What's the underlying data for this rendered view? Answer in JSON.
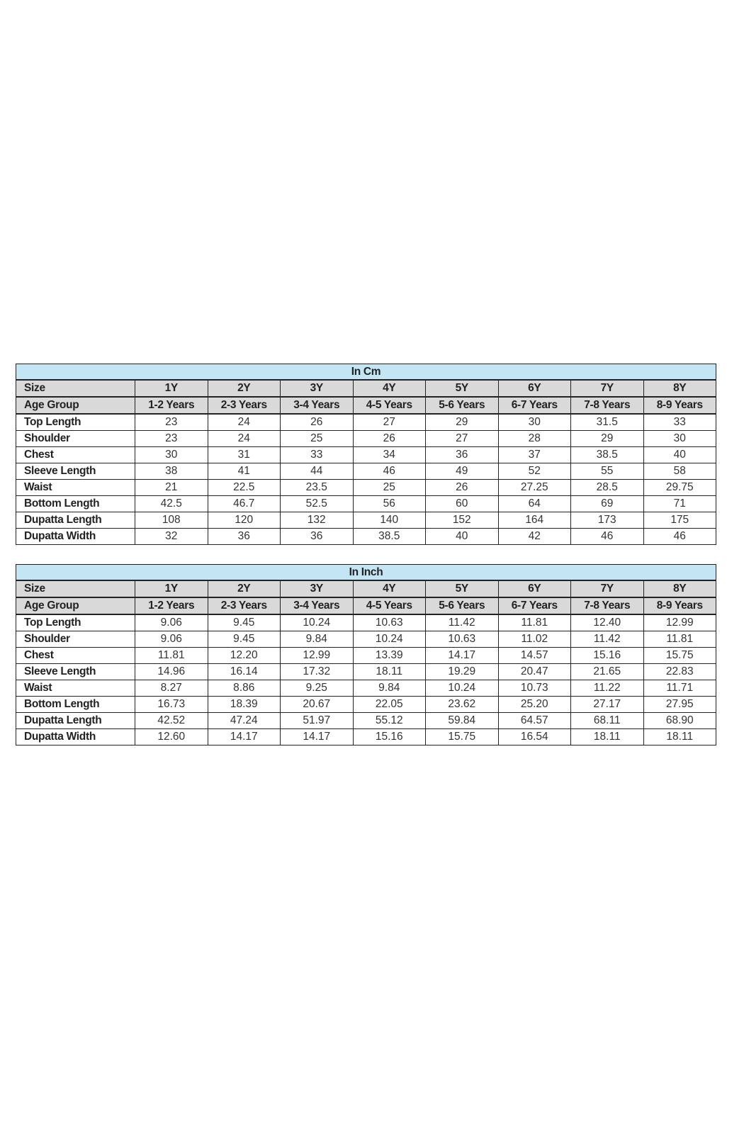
{
  "colors": {
    "title_bg": "#c3e5f4",
    "header_bg": "#d9d9d9",
    "border": "#222222"
  },
  "tables": [
    {
      "title": "In Cm",
      "header_rows": [
        {
          "label": "Size",
          "values": [
            "1Y",
            "2Y",
            "3Y",
            "4Y",
            "5Y",
            "6Y",
            "7Y",
            "8Y"
          ]
        },
        {
          "label": "Age Group",
          "values": [
            "1-2 Years",
            "2-3 Years",
            "3-4 Years",
            "4-5 Years",
            "5-6 Years",
            "6-7 Years",
            "7-8 Years",
            "8-9 Years"
          ]
        }
      ],
      "rows": [
        {
          "label": "Top Length",
          "values": [
            "23",
            "24",
            "26",
            "27",
            "29",
            "30",
            "31.5",
            "33"
          ]
        },
        {
          "label": "Shoulder",
          "values": [
            "23",
            "24",
            "25",
            "26",
            "27",
            "28",
            "29",
            "30"
          ]
        },
        {
          "label": "Chest",
          "values": [
            "30",
            "31",
            "33",
            "34",
            "36",
            "37",
            "38.5",
            "40"
          ]
        },
        {
          "label": "Sleeve Length",
          "values": [
            "38",
            "41",
            "44",
            "46",
            "49",
            "52",
            "55",
            "58"
          ]
        },
        {
          "label": "Waist",
          "values": [
            "21",
            "22.5",
            "23.5",
            "25",
            "26",
            "27.25",
            "28.5",
            "29.75"
          ]
        },
        {
          "label": "Bottom Length",
          "values": [
            "42.5",
            "46.7",
            "52.5",
            "56",
            "60",
            "64",
            "69",
            "71"
          ]
        },
        {
          "label": "Dupatta Length",
          "values": [
            "108",
            "120",
            "132",
            "140",
            "152",
            "164",
            "173",
            "175"
          ]
        },
        {
          "label": "Dupatta Width",
          "values": [
            "32",
            "36",
            "36",
            "38.5",
            "40",
            "42",
            "46",
            "46"
          ]
        }
      ]
    },
    {
      "title": "In Inch",
      "header_rows": [
        {
          "label": "Size",
          "values": [
            "1Y",
            "2Y",
            "3Y",
            "4Y",
            "5Y",
            "6Y",
            "7Y",
            "8Y"
          ]
        },
        {
          "label": "Age Group",
          "values": [
            "1-2 Years",
            "2-3 Years",
            "3-4 Years",
            "4-5 Years",
            "5-6 Years",
            "6-7 Years",
            "7-8 Years",
            "8-9 Years"
          ]
        }
      ],
      "rows": [
        {
          "label": "Top Length",
          "values": [
            "9.06",
            "9.45",
            "10.24",
            "10.63",
            "11.42",
            "11.81",
            "12.40",
            "12.99"
          ]
        },
        {
          "label": "Shoulder",
          "values": [
            "9.06",
            "9.45",
            "9.84",
            "10.24",
            "10.63",
            "11.02",
            "11.42",
            "11.81"
          ]
        },
        {
          "label": "Chest",
          "values": [
            "11.81",
            "12.20",
            "12.99",
            "13.39",
            "14.17",
            "14.57",
            "15.16",
            "15.75"
          ]
        },
        {
          "label": "Sleeve Length",
          "values": [
            "14.96",
            "16.14",
            "17.32",
            "18.11",
            "19.29",
            "20.47",
            "21.65",
            "22.83"
          ]
        },
        {
          "label": "Waist",
          "values": [
            "8.27",
            "8.86",
            "9.25",
            "9.84",
            "10.24",
            "10.73",
            "11.22",
            "11.71"
          ]
        },
        {
          "label": "Bottom Length",
          "values": [
            "16.73",
            "18.39",
            "20.67",
            "22.05",
            "23.62",
            "25.20",
            "27.17",
            "27.95"
          ]
        },
        {
          "label": "Dupatta Length",
          "values": [
            "42.52",
            "47.24",
            "51.97",
            "55.12",
            "59.84",
            "64.57",
            "68.11",
            "68.90"
          ]
        },
        {
          "label": "Dupatta Width",
          "values": [
            "12.60",
            "14.17",
            "14.17",
            "15.16",
            "15.75",
            "16.54",
            "18.11",
            "18.11"
          ]
        }
      ]
    }
  ]
}
